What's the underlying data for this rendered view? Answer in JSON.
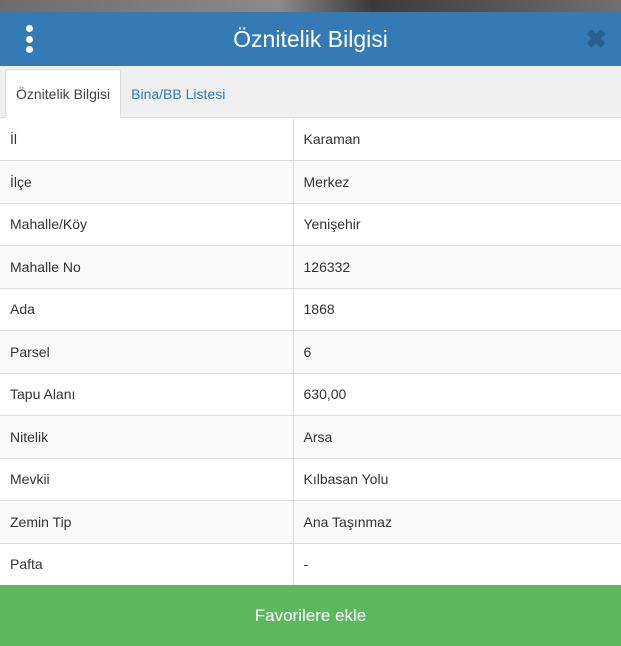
{
  "header": {
    "title": "Öznitelik Bilgisi",
    "menu_icon": "vertical-dots-icon",
    "close_icon": "close-icon"
  },
  "tabs": [
    {
      "label": "Öznitelik Bilgisi",
      "active": true
    },
    {
      "label": "Bina/BB Listesi",
      "active": false
    }
  ],
  "rows": [
    {
      "key": "İl",
      "value": "Karaman"
    },
    {
      "key": "İlçe",
      "value": "Merkez"
    },
    {
      "key": "Mahalle/Köy",
      "value": "Yenişehir"
    },
    {
      "key": "Mahalle No",
      "value": "126332"
    },
    {
      "key": "Ada",
      "value": "1868"
    },
    {
      "key": "Parsel",
      "value": "6"
    },
    {
      "key": "Tapu Alanı",
      "value": "630,00"
    },
    {
      "key": "Nitelik",
      "value": "Arsa"
    },
    {
      "key": "Mevkii",
      "value": "Kılbasan Yolu"
    },
    {
      "key": "Zemin Tip",
      "value": "Ana Taşınmaz"
    },
    {
      "key": "Pafta",
      "value": "-"
    }
  ],
  "footer": {
    "favorite_label": "Favorilere ekle"
  },
  "colors": {
    "header": "#337ab7",
    "button": "#5cb85c"
  }
}
